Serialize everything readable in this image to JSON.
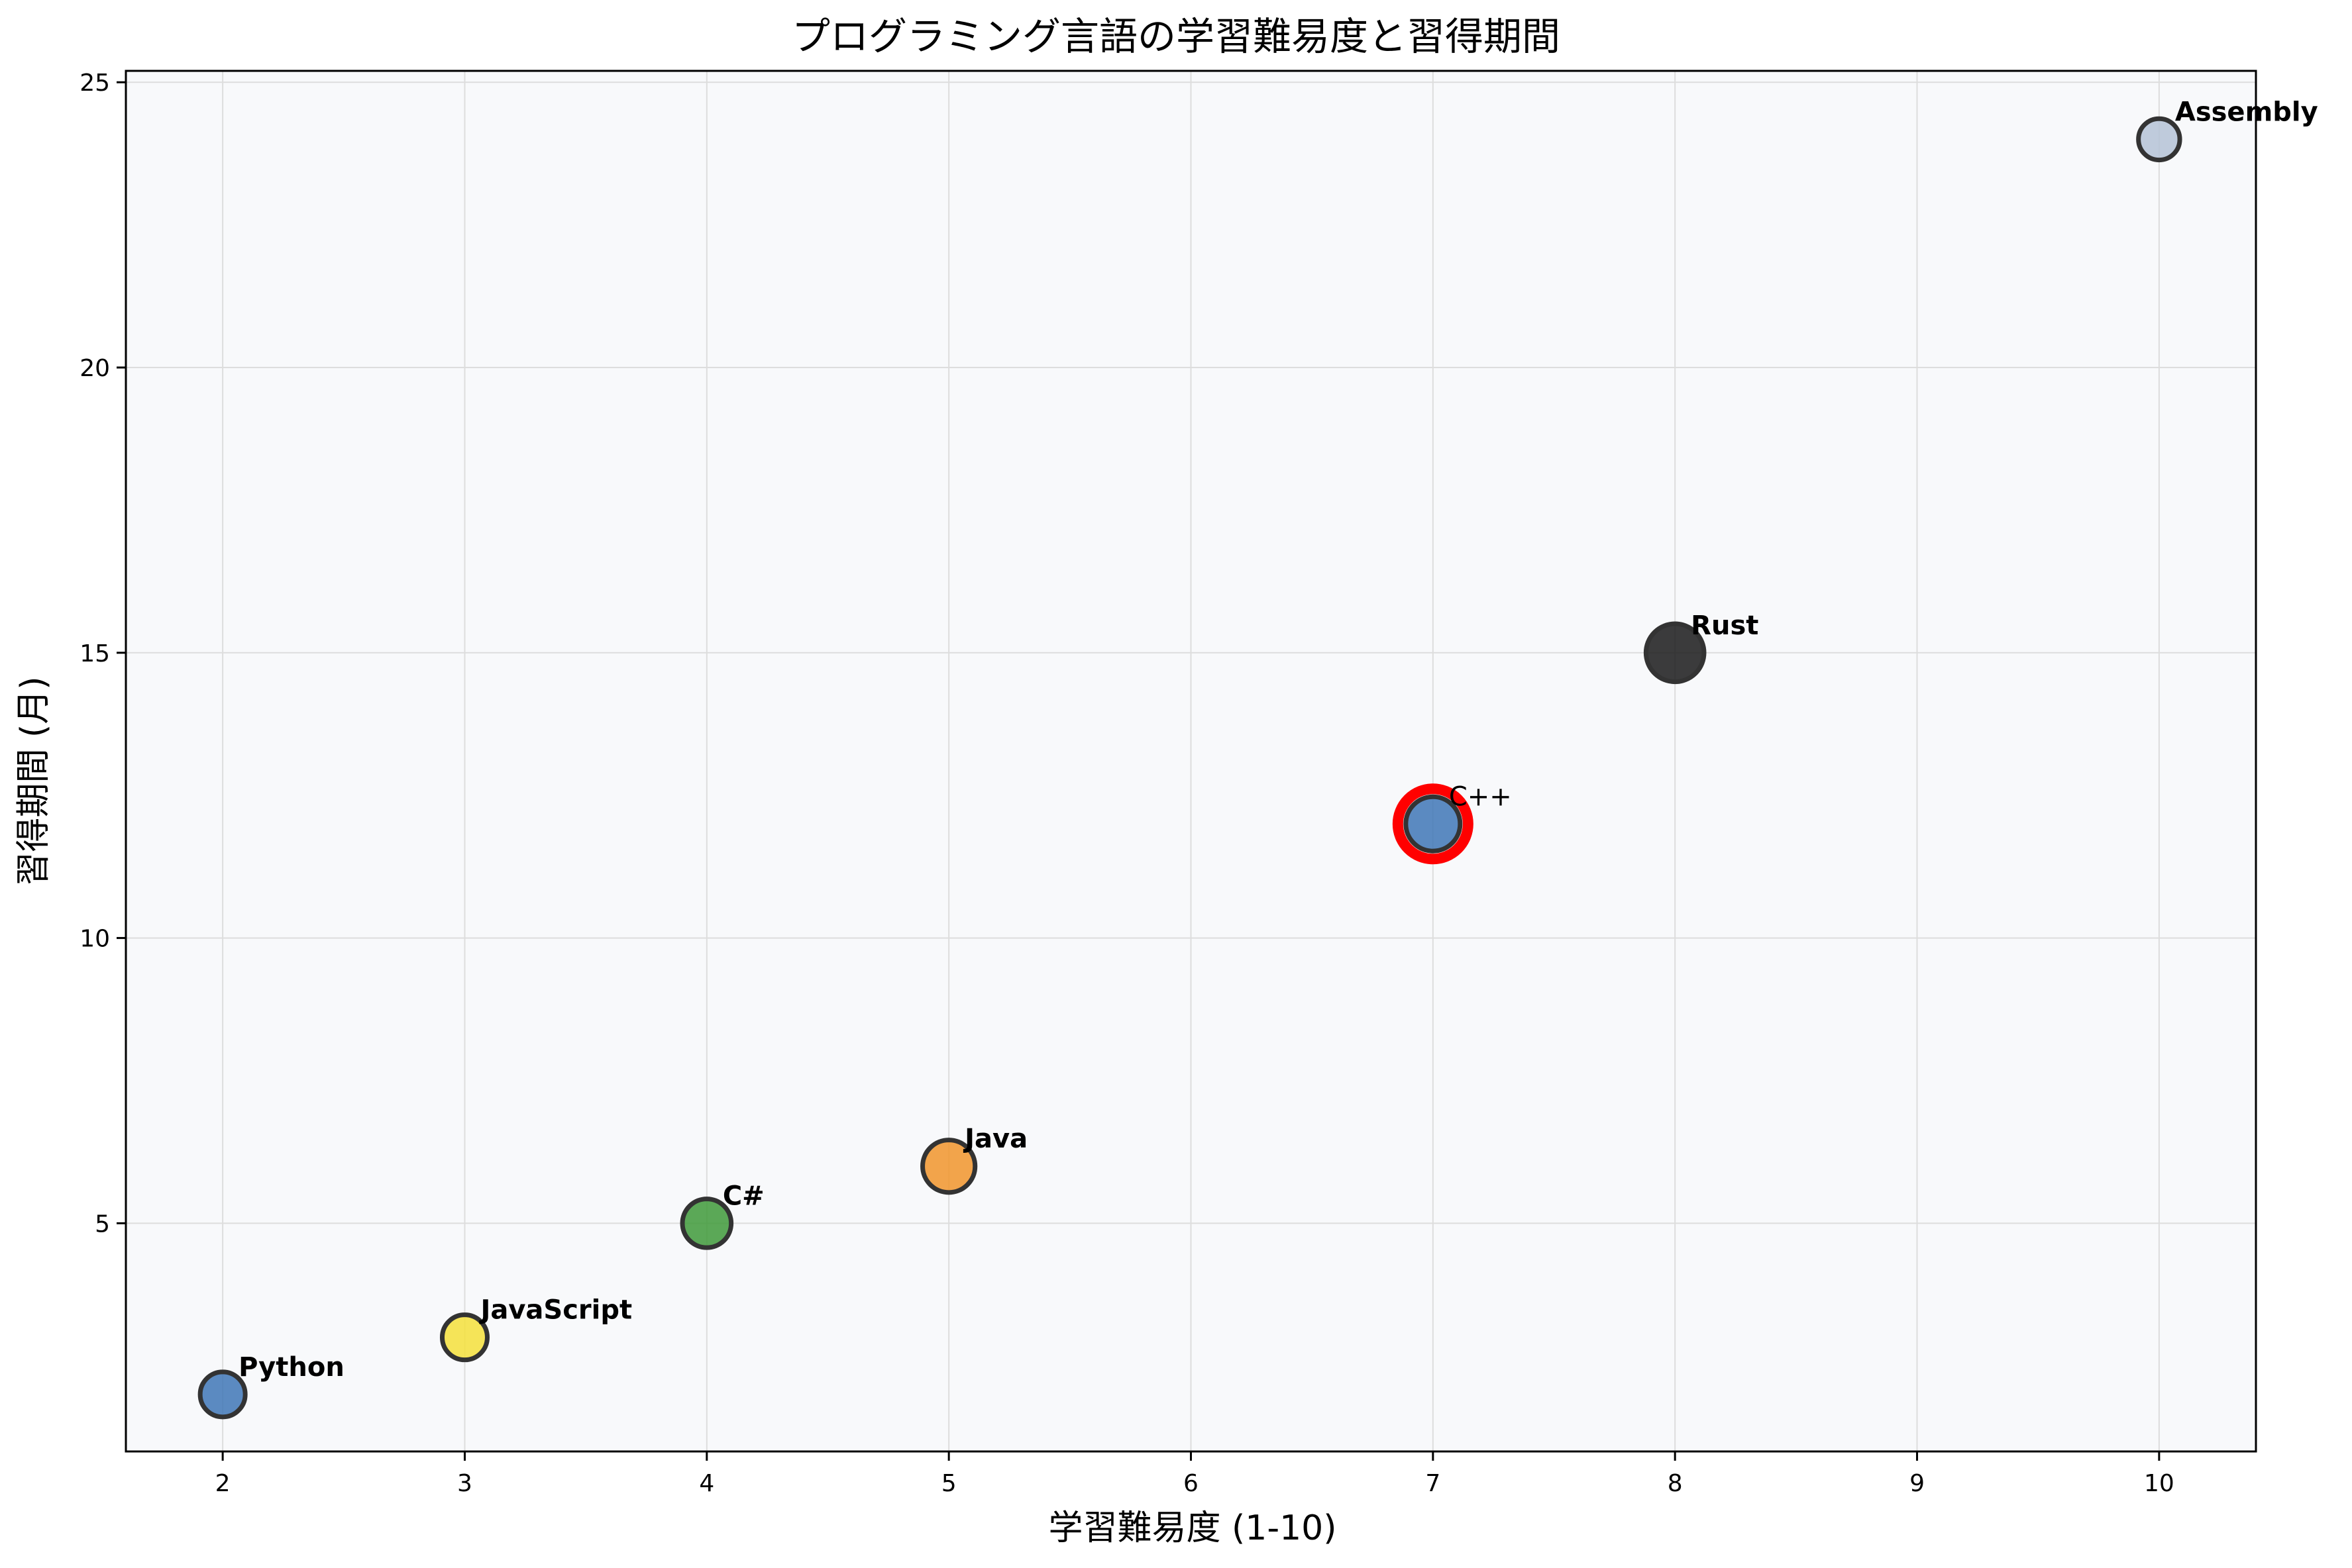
{
  "chart_data": {
    "type": "scatter",
    "title": "プログラミング言語の学習難易度と習得期間",
    "xlabel": "学習難易度 (1-10)",
    "ylabel": "習得期間 (月)",
    "xlim": [
      1.6,
      10.4
    ],
    "ylim": [
      1,
      25.2
    ],
    "xticks": [
      "2",
      "3",
      "4",
      "5",
      "6",
      "7",
      "8",
      "9",
      "10"
    ],
    "yticks": [
      "5",
      "10",
      "15",
      "20",
      "25"
    ],
    "grid": true,
    "points": [
      {
        "label": "Python",
        "x": 2,
        "y": 2,
        "color": "#3f77b6",
        "size": 1.0,
        "bold": true,
        "highlight": false
      },
      {
        "label": "JavaScript",
        "x": 3,
        "y": 3,
        "color": "#f5e13b",
        "size": 1.0,
        "bold": true,
        "highlight": false
      },
      {
        "label": "C#",
        "x": 4,
        "y": 5,
        "color": "#3f9a3a",
        "size": 1.1,
        "bold": true,
        "highlight": false
      },
      {
        "label": "Java",
        "x": 5,
        "y": 6,
        "color": "#f1952c",
        "size": 1.2,
        "bold": true,
        "highlight": false
      },
      {
        "label": "C++",
        "x": 7,
        "y": 12,
        "color": "#3f77b6",
        "size": 1.25,
        "bold": false,
        "highlight": true
      },
      {
        "label": "Rust",
        "x": 8,
        "y": 15,
        "color": "#1a1a1a",
        "size": 1.35,
        "bold": true,
        "highlight": false
      },
      {
        "label": "Assembly",
        "x": 10,
        "y": 24,
        "color": "#b5c3d6",
        "size": 0.9,
        "bold": true,
        "highlight": false
      }
    ],
    "colors": {
      "plot_background": "#f8f9fb",
      "grid": "#dddddd",
      "highlight_ring": "#ff0000",
      "marker_edge": "#333333"
    }
  }
}
